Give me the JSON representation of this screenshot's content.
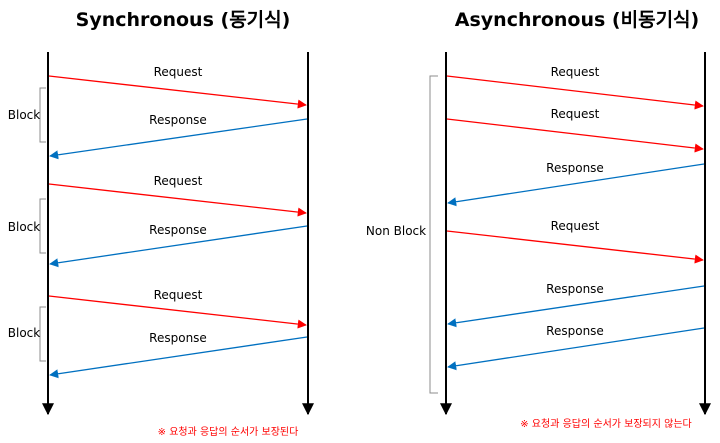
{
  "colors": {
    "request": "#ff0000",
    "response": "#0070c0",
    "note": "#ff0000",
    "bracket": "#8c8c8c",
    "lifeline": "#000000"
  },
  "sync": {
    "title": "Synchronous (동기식)",
    "messages": [
      {
        "label": "Request"
      },
      {
        "label": "Response"
      },
      {
        "label": "Request"
      },
      {
        "label": "Response"
      },
      {
        "label": "Request"
      },
      {
        "label": "Response"
      }
    ],
    "blocks": [
      {
        "label": "Block"
      },
      {
        "label": "Block"
      },
      {
        "label": "Block"
      }
    ],
    "note": "※ 요청과 응답의 순서가 보장된다"
  },
  "async": {
    "title": "Asynchronous (비동기식)",
    "messages": [
      {
        "label": "Request"
      },
      {
        "label": "Request"
      },
      {
        "label": "Response"
      },
      {
        "label": "Request"
      },
      {
        "label": "Response"
      },
      {
        "label": "Response"
      }
    ],
    "block": {
      "label": "Non Block"
    },
    "note": "※ 요청과 응답의 순서가 보장되지 않는다"
  }
}
